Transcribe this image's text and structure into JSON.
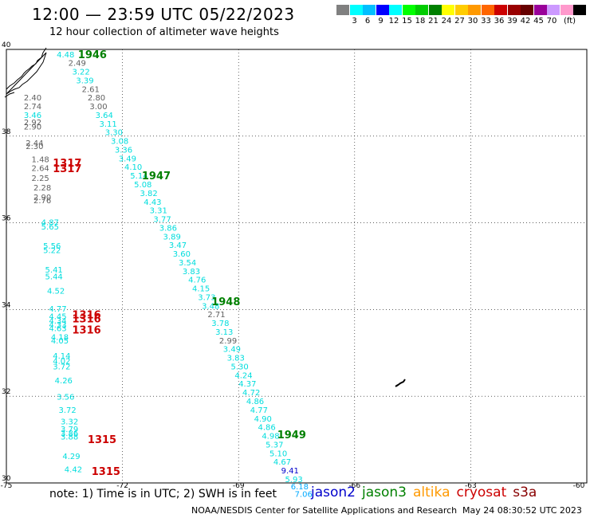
{
  "header": {
    "title": "12:00 — 23:59 UTC 05/22/2023",
    "subtitle": "12 hour collection of altimeter wave heights"
  },
  "colorbar": {
    "colors": [
      "#808080",
      "#00ffff",
      "#00bfff",
      "#0000ff",
      "#00ffff",
      "#00ff00",
      "#00cc00",
      "#008000",
      "#ffff00",
      "#ffcc00",
      "#ff9900",
      "#ff6600",
      "#cc0000",
      "#990000",
      "#660000",
      "#990099",
      "#cc99ff",
      "#ff99cc",
      "#000000"
    ],
    "ticks": [
      "3",
      "6",
      "9",
      "12",
      "15",
      "18",
      "21",
      "24",
      "27",
      "30",
      "33",
      "36",
      "39",
      "42",
      "45",
      "70"
    ],
    "unit": "(ft)"
  },
  "map": {
    "lon_range": [
      -75,
      -60
    ],
    "lat_range": [
      30,
      40
    ],
    "lon_labels": [
      "-75",
      "-72",
      "-69",
      "-66",
      "-63",
      "-60"
    ],
    "lat_labels": [
      "40",
      "38",
      "36",
      "34",
      "32",
      "30"
    ],
    "grid_color": "#000000"
  },
  "chart_data": {
    "type": "scatter",
    "labels": [
      {
        "lon": -73.7,
        "lat": 39.82,
        "t": "4.48",
        "c": "#00dddd"
      },
      {
        "lon": -73.4,
        "lat": 39.62,
        "t": "2.49",
        "c": "#606060"
      },
      {
        "lon": -73.3,
        "lat": 39.42,
        "t": "3.22",
        "c": "#00dddd"
      },
      {
        "lon": -73.2,
        "lat": 39.22,
        "t": "3.39",
        "c": "#00dddd"
      },
      {
        "lon": -73.05,
        "lat": 39.02,
        "t": "2.61",
        "c": "#606060"
      },
      {
        "lon": -72.9,
        "lat": 38.82,
        "t": "2.80",
        "c": "#606060"
      },
      {
        "lon": -72.85,
        "lat": 38.62,
        "t": "3.00",
        "c": "#606060"
      },
      {
        "lon": -72.7,
        "lat": 38.42,
        "t": "3.64",
        "c": "#00dddd"
      },
      {
        "lon": -72.6,
        "lat": 38.22,
        "t": "3.11",
        "c": "#00dddd"
      },
      {
        "lon": -72.45,
        "lat": 38.02,
        "t": "3.30",
        "c": "#00dddd"
      },
      {
        "lon": -72.3,
        "lat": 37.82,
        "t": "3.08",
        "c": "#00dddd"
      },
      {
        "lon": -72.2,
        "lat": 37.62,
        "t": "3.36",
        "c": "#00dddd"
      },
      {
        "lon": -72.1,
        "lat": 37.42,
        "t": "3.49",
        "c": "#00dddd"
      },
      {
        "lon": -71.95,
        "lat": 37.22,
        "t": "4.10",
        "c": "#00dddd"
      },
      {
        "lon": -71.8,
        "lat": 37.02,
        "t": "5.14",
        "c": "#00dddd"
      },
      {
        "lon": -71.7,
        "lat": 36.82,
        "t": "5.08",
        "c": "#00dddd"
      },
      {
        "lon": -71.55,
        "lat": 36.62,
        "t": "3.82",
        "c": "#00dddd"
      },
      {
        "lon": -71.45,
        "lat": 36.42,
        "t": "4.43",
        "c": "#00dddd"
      },
      {
        "lon": -71.3,
        "lat": 36.22,
        "t": "3.31",
        "c": "#00dddd"
      },
      {
        "lon": -71.2,
        "lat": 36.02,
        "t": "3.77",
        "c": "#00dddd"
      },
      {
        "lon": -71.05,
        "lat": 35.82,
        "t": "3.86",
        "c": "#00dddd"
      },
      {
        "lon": -70.95,
        "lat": 35.62,
        "t": "3.89",
        "c": "#00dddd"
      },
      {
        "lon": -70.8,
        "lat": 35.42,
        "t": "3.47",
        "c": "#00dddd"
      },
      {
        "lon": -70.7,
        "lat": 35.22,
        "t": "3.60",
        "c": "#00dddd"
      },
      {
        "lon": -70.55,
        "lat": 35.02,
        "t": "3.54",
        "c": "#00dddd"
      },
      {
        "lon": -70.45,
        "lat": 34.82,
        "t": "3.83",
        "c": "#00dddd"
      },
      {
        "lon": -70.3,
        "lat": 34.62,
        "t": "4.76",
        "c": "#00dddd"
      },
      {
        "lon": -70.2,
        "lat": 34.42,
        "t": "4.15",
        "c": "#00dddd"
      },
      {
        "lon": -70.05,
        "lat": 34.22,
        "t": "3.73",
        "c": "#00dddd"
      },
      {
        "lon": -69.95,
        "lat": 34.02,
        "t": "3.48",
        "c": "#00dddd"
      },
      {
        "lon": -69.8,
        "lat": 33.82,
        "t": "2.71",
        "c": "#606060"
      },
      {
        "lon": -69.7,
        "lat": 33.62,
        "t": "3.78",
        "c": "#00dddd"
      },
      {
        "lon": -69.6,
        "lat": 33.42,
        "t": "3.13",
        "c": "#00dddd"
      },
      {
        "lon": -69.5,
        "lat": 33.22,
        "t": "2.99",
        "c": "#606060"
      },
      {
        "lon": -69.4,
        "lat": 33.02,
        "t": "3.49",
        "c": "#00dddd"
      },
      {
        "lon": -69.3,
        "lat": 32.82,
        "t": "3.83",
        "c": "#00dddd"
      },
      {
        "lon": -69.2,
        "lat": 32.62,
        "t": "5.30",
        "c": "#00dddd"
      },
      {
        "lon": -69.1,
        "lat": 32.42,
        "t": "4.24",
        "c": "#00dddd"
      },
      {
        "lon": -69.0,
        "lat": 32.22,
        "t": "4.37",
        "c": "#00dddd"
      },
      {
        "lon": -68.9,
        "lat": 32.02,
        "t": "4.72",
        "c": "#00dddd"
      },
      {
        "lon": -68.8,
        "lat": 31.82,
        "t": "4.86",
        "c": "#00dddd"
      },
      {
        "lon": -68.7,
        "lat": 31.62,
        "t": "4.77",
        "c": "#00dddd"
      },
      {
        "lon": -68.6,
        "lat": 31.42,
        "t": "4.90",
        "c": "#00dddd"
      },
      {
        "lon": -68.5,
        "lat": 31.22,
        "t": "4.86",
        "c": "#00dddd"
      },
      {
        "lon": -68.4,
        "lat": 31.02,
        "t": "4.98",
        "c": "#00dddd"
      },
      {
        "lon": -68.3,
        "lat": 30.82,
        "t": "5.37",
        "c": "#00dddd"
      },
      {
        "lon": -68.2,
        "lat": 30.62,
        "t": "5.10",
        "c": "#00dddd"
      },
      {
        "lon": -68.1,
        "lat": 30.42,
        "t": "4.67",
        "c": "#00dddd"
      },
      {
        "lon": -67.9,
        "lat": 30.22,
        "t": "9.41",
        "c": "#0000cc"
      },
      {
        "lon": -67.8,
        "lat": 30.02,
        "t": "5.93",
        "c": "#00dddd"
      },
      {
        "lon": -67.65,
        "lat": 29.85,
        "t": "6.18",
        "c": "#00aaff"
      },
      {
        "lon": -67.55,
        "lat": 29.68,
        "t": "7.06",
        "c": "#00aaff"
      },
      {
        "lon": -74.55,
        "lat": 38.82,
        "t": "2.40",
        "c": "#606060"
      },
      {
        "lon": -74.55,
        "lat": 38.62,
        "t": "2.74",
        "c": "#606060"
      },
      {
        "lon": -74.55,
        "lat": 38.42,
        "t": "3.46",
        "c": "#00dddd"
      },
      {
        "lon": -74.55,
        "lat": 38.25,
        "t": "2.92",
        "c": "#606060"
      },
      {
        "lon": -74.55,
        "lat": 38.15,
        "t": "2.90",
        "c": "#606060"
      },
      {
        "lon": -74.5,
        "lat": 37.78,
        "t": "2.44",
        "c": "#606060"
      },
      {
        "lon": -74.5,
        "lat": 37.7,
        "t": "2.30",
        "c": "#606060"
      },
      {
        "lon": -74.35,
        "lat": 37.4,
        "t": "1.48",
        "c": "#606060"
      },
      {
        "lon": -74.35,
        "lat": 37.2,
        "t": "2.64",
        "c": "#606060"
      },
      {
        "lon": -74.35,
        "lat": 36.97,
        "t": "2.25",
        "c": "#606060"
      },
      {
        "lon": -74.3,
        "lat": 36.75,
        "t": "2.28",
        "c": "#606060"
      },
      {
        "lon": -74.3,
        "lat": 36.53,
        "t": "2.90",
        "c": "#606060"
      },
      {
        "lon": -74.3,
        "lat": 36.45,
        "t": "2.76",
        "c": "#606060"
      },
      {
        "lon": -74.1,
        "lat": 35.95,
        "t": "4.87",
        "c": "#00dddd"
      },
      {
        "lon": -74.1,
        "lat": 35.85,
        "t": "5.65",
        "c": "#00dddd"
      },
      {
        "lon": -74.05,
        "lat": 35.4,
        "t": "5.56",
        "c": "#00dddd"
      },
      {
        "lon": -74.05,
        "lat": 35.3,
        "t": "5.22",
        "c": "#00dddd"
      },
      {
        "lon": -74.0,
        "lat": 34.85,
        "t": "5.41",
        "c": "#00dddd"
      },
      {
        "lon": -74.0,
        "lat": 34.7,
        "t": "5.44",
        "c": "#00dddd"
      },
      {
        "lon": -73.95,
        "lat": 34.37,
        "t": "4.52",
        "c": "#00dddd"
      },
      {
        "lon": -73.9,
        "lat": 33.95,
        "t": "4.77",
        "c": "#00dddd"
      },
      {
        "lon": -73.9,
        "lat": 33.78,
        "t": "4.45",
        "c": "#00dddd"
      },
      {
        "lon": -73.9,
        "lat": 33.68,
        "t": "4.34",
        "c": "#00dddd"
      },
      {
        "lon": -73.9,
        "lat": 33.58,
        "t": "4.33",
        "c": "#00dddd"
      },
      {
        "lon": -73.9,
        "lat": 33.5,
        "t": "4.63",
        "c": "#00dddd"
      },
      {
        "lon": -73.85,
        "lat": 33.3,
        "t": "4.18",
        "c": "#00dddd"
      },
      {
        "lon": -73.85,
        "lat": 33.22,
        "t": "4.05",
        "c": "#00dddd"
      },
      {
        "lon": -73.8,
        "lat": 32.87,
        "t": "4.14",
        "c": "#00dddd"
      },
      {
        "lon": -73.8,
        "lat": 32.75,
        "t": "4.02",
        "c": "#00dddd"
      },
      {
        "lon": -73.8,
        "lat": 32.62,
        "t": "3.72",
        "c": "#00dddd"
      },
      {
        "lon": -73.75,
        "lat": 32.3,
        "t": "4.26",
        "c": "#00dddd"
      },
      {
        "lon": -73.7,
        "lat": 31.92,
        "t": "3.56",
        "c": "#00dddd"
      },
      {
        "lon": -73.65,
        "lat": 31.62,
        "t": "3.72",
        "c": "#00dddd"
      },
      {
        "lon": -73.6,
        "lat": 31.35,
        "t": "3.32",
        "c": "#00dddd"
      },
      {
        "lon": -73.6,
        "lat": 31.18,
        "t": "3.79",
        "c": "#00dddd"
      },
      {
        "lon": -73.6,
        "lat": 31.08,
        "t": "3.86",
        "c": "#00dddd"
      },
      {
        "lon": -73.6,
        "lat": 31.0,
        "t": "3.88",
        "c": "#00dddd"
      },
      {
        "lon": -73.55,
        "lat": 30.55,
        "t": "4.29",
        "c": "#00dddd"
      },
      {
        "lon": -73.5,
        "lat": 30.25,
        "t": "4.42",
        "c": "#00dddd"
      }
    ],
    "pass_labels": [
      {
        "lon": -73.15,
        "lat": 39.8,
        "t": "1946",
        "c": "#008000"
      },
      {
        "lon": -71.5,
        "lat": 37.0,
        "t": "1947",
        "c": "#008000"
      },
      {
        "lon": -69.7,
        "lat": 34.1,
        "t": "1948",
        "c": "#008000"
      },
      {
        "lon": -68.0,
        "lat": 31.03,
        "t": "1949",
        "c": "#008000"
      },
      {
        "lon": -73.8,
        "lat": 37.3,
        "t": "1317",
        "c": "#cc0000"
      },
      {
        "lon": -73.8,
        "lat": 37.17,
        "t": "1317",
        "c": "#cc0000"
      },
      {
        "lon": -73.3,
        "lat": 33.8,
        "t": "1316",
        "c": "#cc0000"
      },
      {
        "lon": -73.3,
        "lat": 33.7,
        "t": "1316",
        "c": "#cc0000"
      },
      {
        "lon": -73.3,
        "lat": 33.45,
        "t": "1316",
        "c": "#cc0000"
      },
      {
        "lon": -72.9,
        "lat": 30.92,
        "t": "1315",
        "c": "#cc0000"
      },
      {
        "lon": -72.8,
        "lat": 30.18,
        "t": "1315",
        "c": "#cc0000"
      }
    ]
  },
  "footer": {
    "note": "note:  1) Time is in UTC; 2) SWH is in feet",
    "satellites": [
      {
        "name": "jason2",
        "color": "#0000cc"
      },
      {
        "name": "jason3",
        "color": "#008000"
      },
      {
        "name": "altika",
        "color": "#ff9900"
      },
      {
        "name": "cryosat",
        "color": "#cc0000"
      },
      {
        "name": "s3a",
        "color": "#880000"
      }
    ],
    "credit": "NOAA/NESDIS Center for Satellite Applications and Research",
    "timestamp": "May 24 08:30:52 UTC 2023"
  }
}
